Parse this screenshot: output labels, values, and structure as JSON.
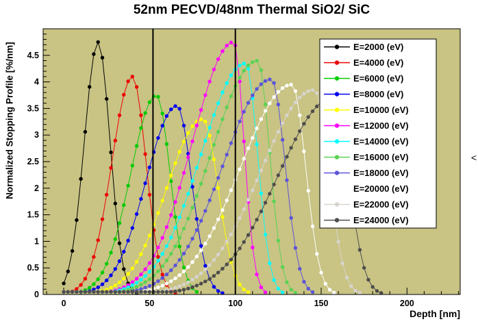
{
  "misc": {
    "side_glyph": "<"
  },
  "chart_data": {
    "type": "line",
    "title": "52nm PECVD/48nm Thermal SiO2/ SiC",
    "xlabel": "Depth [nm]",
    "ylabel": "Normalized Stopping Profile [%/nm]",
    "xlim": [
      -12,
      231
    ],
    "ylim": [
      0,
      5.0
    ],
    "plot_bg": "#c9c384",
    "grid": false,
    "legend_position": "top-right",
    "layer_boundaries_nm": [
      52,
      100
    ],
    "sample_step_nm": 2.5,
    "baseline_level": 0.05,
    "x_ticks": {
      "major": [
        0,
        50,
        100,
        150,
        200
      ],
      "labels": [
        "0",
        "50",
        "100",
        "150",
        "200"
      ],
      "minor_step": 10
    },
    "y_ticks": {
      "major": [
        0,
        0.5,
        1,
        1.5,
        2,
        2.5,
        3,
        3.5,
        4,
        4.5
      ],
      "labels": [
        "0",
        "0.5",
        "1",
        "1.5",
        "2",
        "2.5",
        "3",
        "3.5",
        "4",
        "4.5"
      ],
      "minor_step": 0.1
    },
    "series": [
      {
        "name": "E=2000 (eV)",
        "energy_eV": 2000,
        "color": "#000000",
        "peak_x": 20,
        "peak_y": 4.75,
        "sigma_left": 8,
        "sigma_right": 7
      },
      {
        "name": "E=4000 (eV)",
        "energy_eV": 4000,
        "color": "#ee0000",
        "peak_x": 40,
        "peak_y": 4.1,
        "sigma_left": 12,
        "sigma_right": 8
      },
      {
        "name": "E=6000 (eV)",
        "energy_eV": 6000,
        "color": "#00cc00",
        "peak_x": 54,
        "peak_y": 3.75,
        "sigma_left": 15,
        "sigma_right": 8
      },
      {
        "name": "E=8000 (eV)",
        "energy_eV": 8000,
        "color": "#0000ee",
        "peak_x": 66,
        "peak_y": 3.55,
        "sigma_left": 18,
        "sigma_right": 8.5
      },
      {
        "name": "E=10000 (eV)",
        "energy_eV": 10000,
        "color": "#ffff00",
        "peak_x": 81,
        "peak_y": 3.3,
        "sigma_left": 21,
        "sigma_right": 9
      },
      {
        "name": "E=12000 (eV)",
        "energy_eV": 12000,
        "color": "#ff00ff",
        "peak_x": 99,
        "peak_y": 4.75,
        "sigma_left": 24,
        "sigma_right": 6
      },
      {
        "name": "E=14000 (eV)",
        "energy_eV": 14000,
        "color": "#00ffff",
        "peak_x": 106,
        "peak_y": 4.35,
        "sigma_left": 26,
        "sigma_right": 7
      },
      {
        "name": "E=16000 (eV)",
        "energy_eV": 16000,
        "color": "#59d354",
        "peak_x": 113,
        "peak_y": 4.4,
        "sigma_left": 27,
        "sigma_right": 7
      },
      {
        "name": "E=18000 (eV)",
        "energy_eV": 18000,
        "color": "#5b54d9",
        "peak_x": 121,
        "peak_y": 4.05,
        "sigma_left": 28,
        "sigma_right": 8
      },
      {
        "name": "E=20000 (eV)",
        "energy_eV": 20000,
        "color": "#ffffff",
        "peak_x": 133,
        "peak_y": 3.95,
        "sigma_left": 30,
        "sigma_right": 8
      },
      {
        "name": "E=22000 (eV)",
        "energy_eV": 22000,
        "color": "#d7d4ce",
        "peak_x": 146,
        "peak_y": 3.85,
        "sigma_left": 31,
        "sigma_right": 8.5
      },
      {
        "name": "E=24000 (eV)",
        "energy_eV": 24000,
        "color": "#4d4d4d",
        "peak_x": 157,
        "peak_y": 3.7,
        "sigma_left": 32,
        "sigma_right": 9
      }
    ]
  }
}
